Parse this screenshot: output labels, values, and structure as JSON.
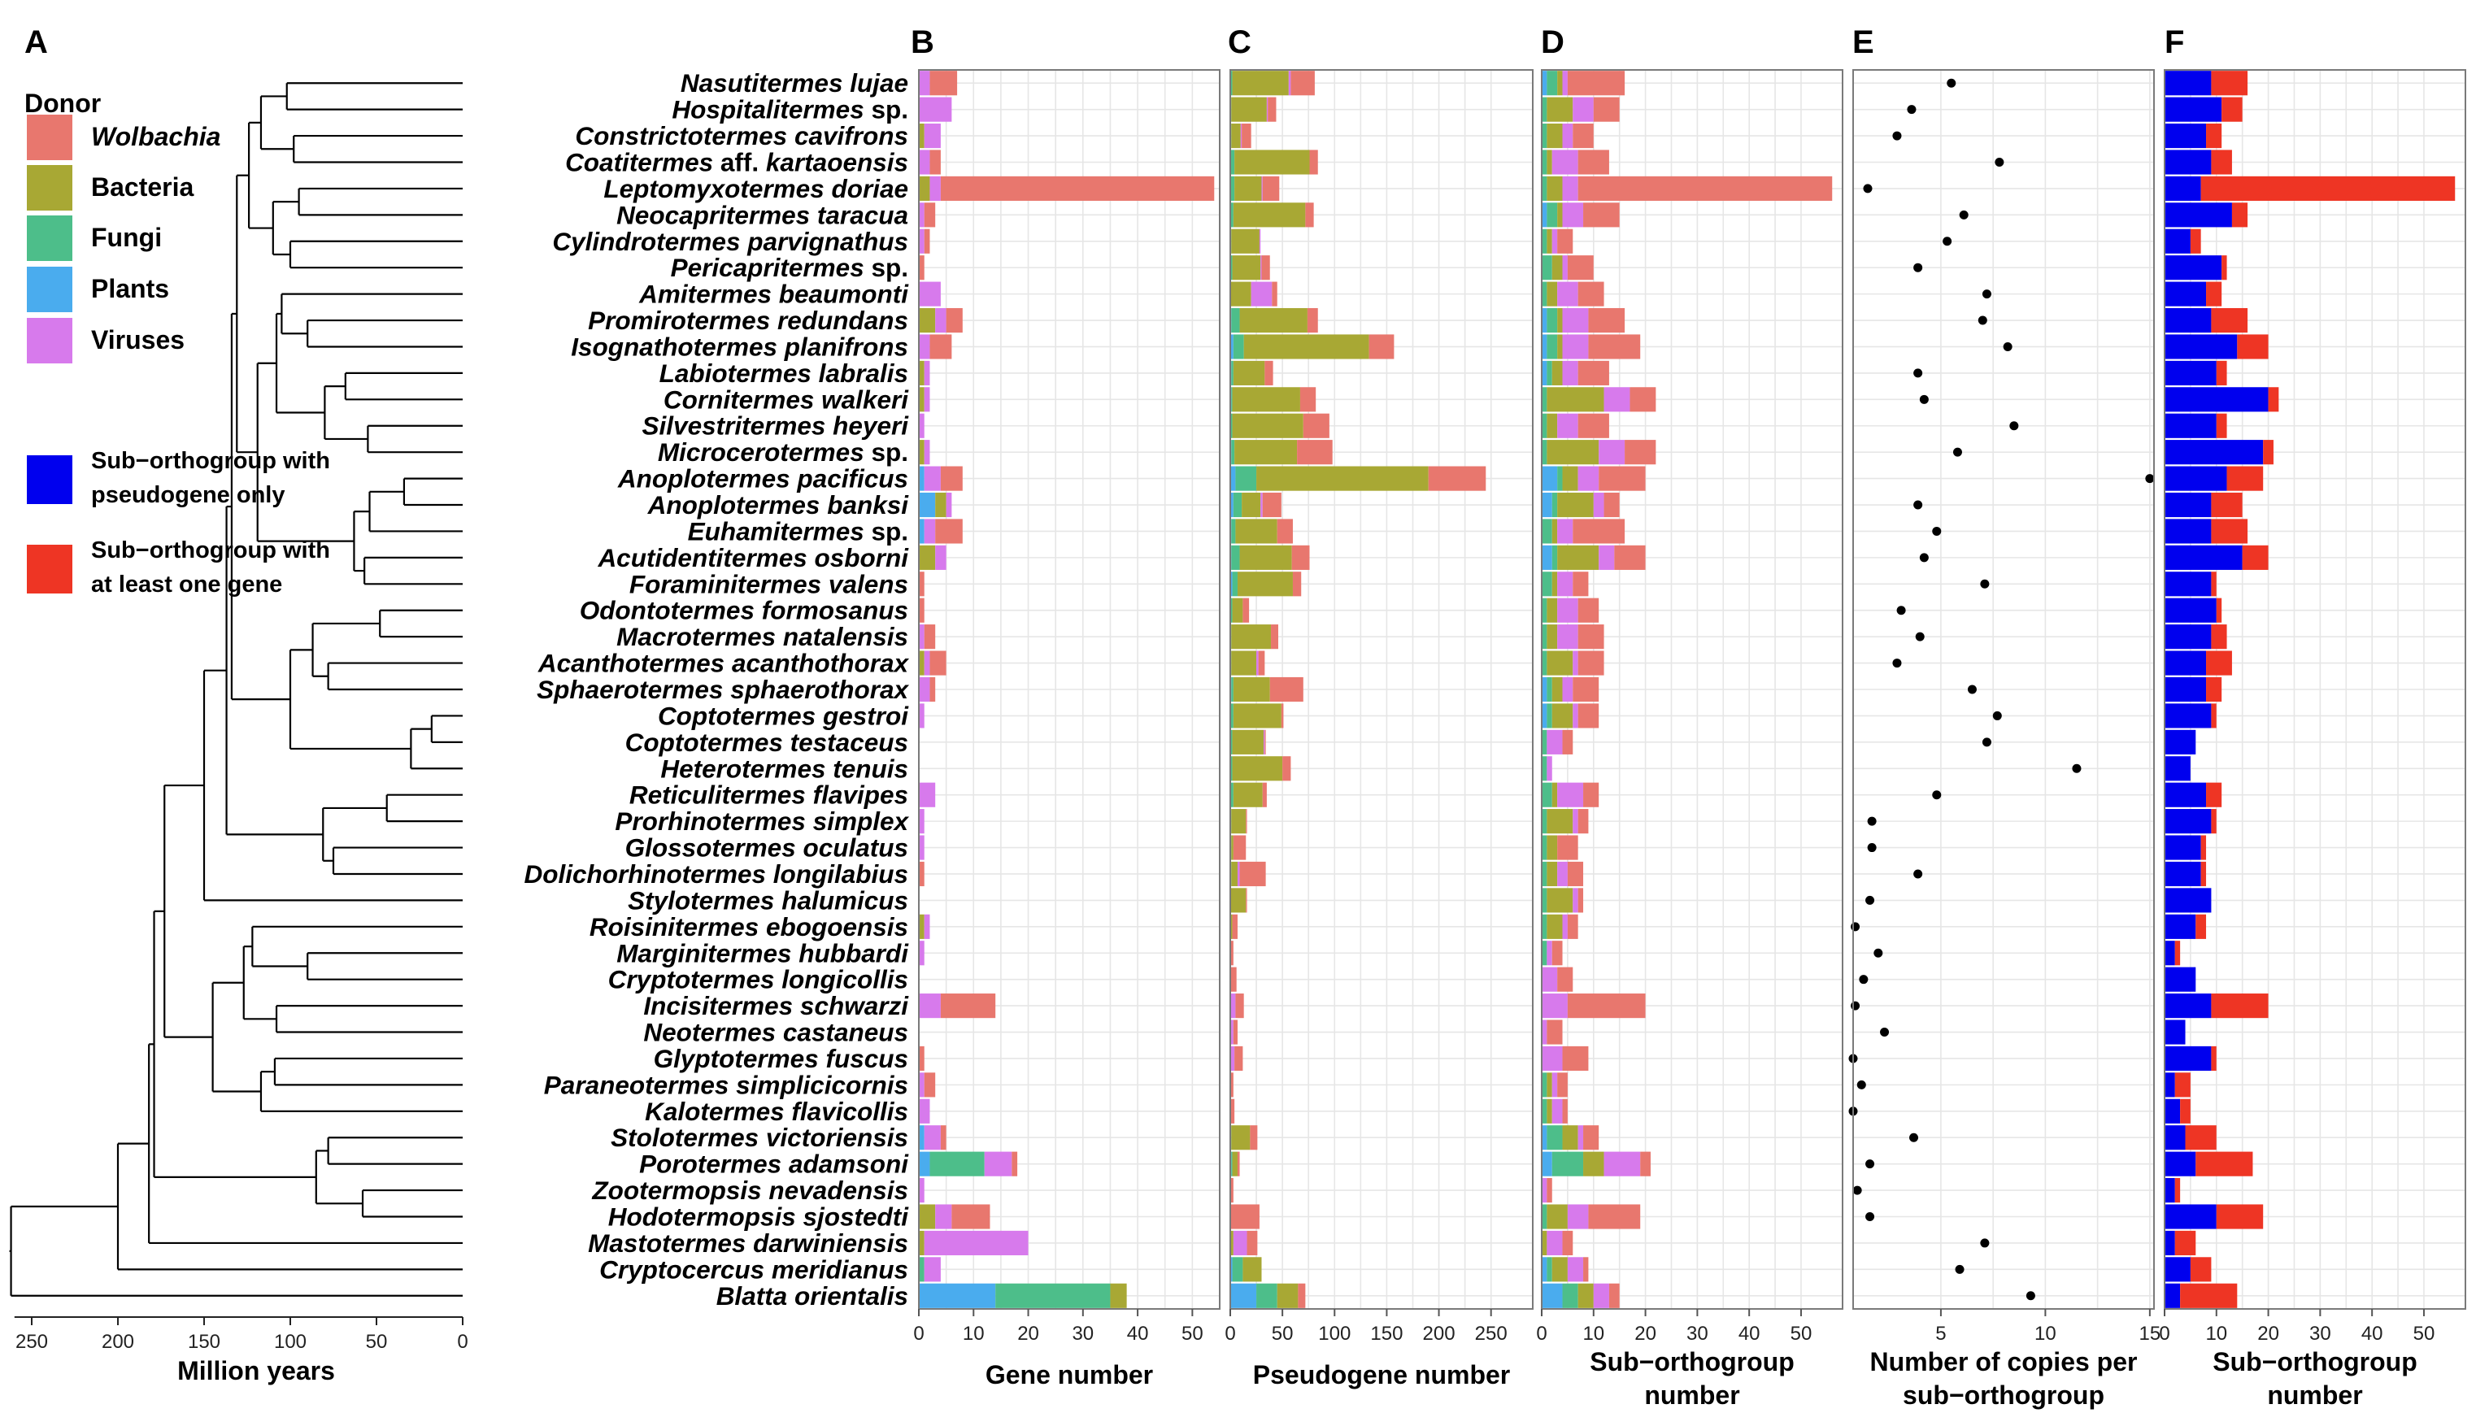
{
  "panel_letters": {
    "A": "A",
    "B": "B",
    "C": "C",
    "D": "D",
    "E": "E",
    "F": "F"
  },
  "legend": {
    "donor_title": "Donor",
    "donors": [
      {
        "key": "wolbachia",
        "label": "Wolbachia",
        "italic": true,
        "color": "#E8776E"
      },
      {
        "key": "bacteria",
        "label": "Bacteria",
        "italic": false,
        "color": "#A8A834"
      },
      {
        "key": "fungi",
        "label": "Fungi",
        "italic": false,
        "color": "#4DBE8A"
      },
      {
        "key": "plants",
        "label": "Plants",
        "italic": false,
        "color": "#4AACEE"
      },
      {
        "key": "viruses",
        "label": "Viruses",
        "italic": false,
        "color": "#D77AEC"
      }
    ],
    "subog": [
      {
        "key": "pseudo",
        "line1": "Sub−orthogroup with",
        "line2": "pseudogene only",
        "color": "#0000EE"
      },
      {
        "key": "gene",
        "line1": "Sub−orthogroup with",
        "line2": "at least one gene",
        "color": "#EE3524"
      }
    ]
  },
  "tree": {
    "axis_title": "Million years",
    "ticks": [
      "250",
      "200",
      "150",
      "100",
      "50",
      "0"
    ]
  },
  "chart_data": {
    "type": "bar",
    "orientation": "horizontal",
    "categories": [
      "Nasutitermes lujae",
      "Hospitalitermes sp.",
      "Constrictotermes cavifrons",
      "Coatitermes aff. kartaoensis",
      "Leptomyxotermes doriae",
      "Neocapritermes taracua",
      "Cylindrotermes parvignathus",
      "Pericapritermes sp.",
      "Amitermes beaumonti",
      "Promirotermes redundans",
      "Isognathotermes planifrons",
      "Labiotermes labralis",
      "Cornitermes walkeri",
      "Silvestritermes heyeri",
      "Microcerotermes sp.",
      "Anoplotermes pacificus",
      "Anoplotermes banksi",
      "Euhamitermes sp.",
      "Acutidentitermes osborni",
      "Foraminitermes valens",
      "Odontotermes formosanus",
      "Macrotermes natalensis",
      "Acanthotermes acanthothorax",
      "Sphaerotermes sphaerothorax",
      "Coptotermes gestroi",
      "Coptotermes testaceus",
      "Heterotermes tenuis",
      "Reticulitermes flavipes",
      "Prorhinotermes simplex",
      "Glossotermes oculatus",
      "Dolichorhinotermes longilabius",
      "Stylotermes halumicus",
      "Roisinitermes ebogoensis",
      "Marginitermes hubbardi",
      "Cryptotermes longicollis",
      "Incisitermes schwarzi",
      "Neotermes castaneus",
      "Glyptotermes fuscus",
      "Paraneotermes simplicicornis",
      "Kalotermes flavicollis",
      "Stolotermes victoriensis",
      "Porotermes adamsoni",
      "Zootermopsis nevadensis",
      "Hodotermopsis sjostedti",
      "Mastotermes darwiniensis",
      "Cryptocercus meridianus",
      "Blatta orientalis"
    ],
    "stack_order": [
      "plants",
      "fungi",
      "bacteria",
      "viruses",
      "wolbachia"
    ],
    "panels": [
      {
        "id": "B",
        "type": "stacked_bar",
        "xlabel": "Gene number",
        "xlim": [
          0,
          55
        ],
        "ticks": [
          0,
          10,
          20,
          30,
          40,
          50
        ],
        "series": {
          "plants": [
            0,
            0,
            0,
            0,
            0,
            0,
            0,
            0,
            0,
            0,
            0,
            0,
            0,
            0,
            0,
            1,
            3,
            1,
            0,
            0,
            0,
            0,
            0,
            0,
            0,
            0,
            0,
            0,
            0,
            0,
            0,
            0,
            0,
            0,
            0,
            0,
            0,
            0,
            0,
            0,
            1,
            2,
            0,
            0,
            0,
            0,
            14
          ],
          "fungi": [
            0,
            0,
            0,
            0,
            0,
            0,
            0,
            0,
            0,
            0,
            0,
            0,
            0,
            0,
            0,
            0,
            0,
            0,
            0,
            0,
            0,
            0,
            0,
            0,
            0,
            0,
            0,
            0,
            0,
            0,
            0,
            0,
            0,
            0,
            0,
            0,
            0,
            0,
            0,
            0,
            0,
            10,
            0,
            0,
            0,
            1,
            21
          ],
          "bacteria": [
            0,
            0,
            1,
            0,
            2,
            0,
            0,
            0,
            0,
            3,
            0,
            1,
            1,
            0,
            1,
            0,
            2,
            0,
            3,
            0,
            0,
            0,
            1,
            0,
            0,
            0,
            0,
            0,
            0,
            0,
            0,
            0,
            1,
            0,
            0,
            0,
            0,
            0,
            0,
            0,
            0,
            0,
            0,
            3,
            1,
            0,
            3
          ],
          "viruses": [
            2,
            6,
            3,
            2,
            2,
            1,
            1,
            0,
            4,
            2,
            2,
            1,
            1,
            1,
            1,
            3,
            1,
            2,
            2,
            0,
            0,
            1,
            1,
            2,
            1,
            0,
            0,
            3,
            1,
            1,
            0,
            0,
            1,
            1,
            0,
            4,
            0,
            0,
            1,
            2,
            3,
            5,
            1,
            3,
            19,
            3,
            0
          ],
          "wolbachia": [
            5,
            0,
            0,
            2,
            50,
            2,
            1,
            1,
            0,
            3,
            4,
            0,
            0,
            0,
            0,
            4,
            0,
            5,
            0,
            1,
            1,
            2,
            3,
            1,
            0,
            0,
            0,
            0,
            0,
            0,
            1,
            0,
            0,
            0,
            0,
            10,
            0,
            1,
            2,
            0,
            1,
            1,
            0,
            7,
            0,
            0,
            0
          ]
        }
      },
      {
        "id": "C",
        "type": "stacked_bar",
        "xlabel": "Pseudogene number",
        "xlim": [
          0,
          290
        ],
        "ticks": [
          0,
          50,
          100,
          150,
          200,
          250
        ],
        "series": {
          "plants": [
            0,
            0,
            0,
            0,
            0,
            0,
            0,
            0,
            0,
            1,
            3,
            1,
            1,
            0,
            1,
            5,
            3,
            1,
            1,
            2,
            0,
            0,
            0,
            1,
            0,
            0,
            0,
            0,
            0,
            0,
            0,
            0,
            0,
            0,
            0,
            0,
            0,
            0,
            0,
            0,
            0,
            1,
            0,
            0,
            0,
            2,
            25
          ],
          "fungi": [
            2,
            1,
            1,
            4,
            4,
            3,
            1,
            2,
            0,
            8,
            10,
            2,
            1,
            2,
            3,
            20,
            8,
            4,
            8,
            5,
            2,
            1,
            1,
            2,
            3,
            2,
            2,
            3,
            1,
            1,
            1,
            0,
            0,
            0,
            0,
            0,
            0,
            0,
            0,
            0,
            1,
            1,
            0,
            0,
            0,
            10,
            20
          ],
          "bacteria": [
            54,
            34,
            9,
            72,
            26,
            69,
            27,
            27,
            20,
            65,
            120,
            30,
            65,
            68,
            60,
            165,
            18,
            40,
            50,
            53,
            10,
            38,
            24,
            35,
            46,
            30,
            48,
            28,
            14,
            2,
            6,
            15,
            2,
            0,
            0,
            0,
            0,
            0,
            0,
            0,
            18,
            5,
            0,
            0,
            3,
            18,
            20
          ],
          "viruses": [
            2,
            1,
            1,
            0,
            1,
            0,
            1,
            1,
            20,
            0,
            0,
            0,
            0,
            0,
            0,
            0,
            2,
            0,
            0,
            0,
            0,
            0,
            2,
            0,
            0,
            1,
            0,
            0,
            0,
            0,
            2,
            0,
            0,
            0,
            0,
            5,
            3,
            4,
            0,
            0,
            0,
            0,
            0,
            0,
            13,
            0,
            0
          ],
          "wolbachia": [
            23,
            8,
            9,
            8,
            16,
            8,
            0,
            8,
            5,
            10,
            24,
            8,
            15,
            25,
            34,
            55,
            18,
            15,
            17,
            8,
            6,
            7,
            6,
            32,
            2,
            1,
            8,
            4,
            1,
            12,
            25,
            1,
            5,
            3,
            6,
            8,
            4,
            8,
            3,
            4,
            7,
            2,
            3,
            28,
            10,
            0,
            7
          ]
        }
      },
      {
        "id": "D",
        "type": "stacked_bar",
        "xlabel": "Sub−orthogroup number",
        "xlim": [
          0,
          58
        ],
        "ticks": [
          0,
          10,
          20,
          30,
          40,
          50
        ],
        "series": {
          "plants": [
            1,
            0,
            0,
            0,
            0,
            1,
            0,
            0,
            0,
            1,
            1,
            1,
            0,
            0,
            0,
            3,
            2,
            0,
            2,
            0,
            0,
            0,
            0,
            1,
            1,
            0,
            0,
            0,
            0,
            0,
            0,
            0,
            0,
            0,
            0,
            0,
            0,
            0,
            0,
            0,
            1,
            2,
            0,
            0,
            0,
            1,
            4
          ],
          "fungi": [
            2,
            1,
            1,
            1,
            1,
            2,
            1,
            2,
            1,
            2,
            2,
            1,
            1,
            1,
            1,
            1,
            1,
            2,
            1,
            2,
            1,
            1,
            1,
            1,
            1,
            1,
            1,
            2,
            1,
            1,
            1,
            1,
            1,
            1,
            0,
            0,
            0,
            0,
            1,
            1,
            3,
            6,
            0,
            1,
            0,
            1,
            3
          ],
          "bacteria": [
            1,
            5,
            3,
            1,
            3,
            1,
            1,
            2,
            2,
            1,
            1,
            2,
            11,
            2,
            10,
            3,
            7,
            1,
            8,
            1,
            2,
            2,
            5,
            2,
            4,
            0,
            0,
            1,
            5,
            2,
            2,
            5,
            3,
            0,
            0,
            0,
            0,
            0,
            1,
            1,
            3,
            4,
            0,
            4,
            1,
            3,
            3
          ],
          "viruses": [
            1,
            4,
            2,
            5,
            3,
            4,
            1,
            1,
            4,
            5,
            5,
            3,
            5,
            4,
            5,
            4,
            2,
            3,
            3,
            3,
            4,
            4,
            1,
            2,
            1,
            3,
            1,
            5,
            1,
            0,
            2,
            1,
            1,
            1,
            3,
            5,
            1,
            4,
            1,
            2,
            1,
            7,
            1,
            4,
            3,
            3,
            3
          ],
          "wolbachia": [
            11,
            5,
            4,
            6,
            49,
            7,
            3,
            5,
            5,
            7,
            10,
            6,
            5,
            6,
            6,
            9,
            3,
            10,
            6,
            3,
            4,
            5,
            5,
            5,
            4,
            2,
            0,
            3,
            2,
            4,
            3,
            1,
            2,
            2,
            3,
            15,
            3,
            5,
            2,
            1,
            3,
            2,
            1,
            10,
            2,
            1,
            2
          ]
        }
      },
      {
        "id": "E",
        "type": "dot",
        "xlabel": "Number of copies per sub−orthogroup",
        "xlim": [
          0.8,
          15.2
        ],
        "ticks": [
          5,
          10,
          15
        ],
        "values": [
          5.5,
          3.6,
          2.9,
          7.8,
          1.5,
          6.1,
          5.3,
          3.9,
          7.2,
          7.0,
          8.2,
          3.9,
          4.2,
          8.5,
          5.8,
          15,
          3.9,
          4.8,
          4.2,
          7.1,
          3.1,
          4.0,
          2.9,
          6.5,
          7.7,
          7.2,
          11.5,
          4.8,
          1.7,
          1.7,
          3.9,
          1.6,
          0.9,
          2.0,
          1.3,
          0.9,
          2.3,
          0.8,
          1.2,
          0.8,
          3.7,
          1.6,
          1.0,
          1.6,
          7.1,
          5.9,
          9.3
        ]
      },
      {
        "id": "F",
        "type": "stacked_bar",
        "xlabel": "Sub−orthogroup number",
        "xlim": [
          0,
          58
        ],
        "ticks": [
          0,
          10,
          20,
          30,
          40,
          50
        ],
        "series": {
          "pseudo": [
            9,
            11,
            8,
            9,
            7,
            13,
            5,
            11,
            8,
            9,
            14,
            10,
            20,
            10,
            19,
            12,
            9,
            9,
            15,
            9,
            10,
            9,
            8,
            8,
            9,
            6,
            5,
            8,
            9,
            7,
            7,
            9,
            6,
            2,
            6,
            9,
            4,
            9,
            2,
            3,
            4,
            6,
            2,
            10,
            2,
            5,
            3
          ],
          "gene": [
            7,
            4,
            3,
            4,
            49,
            3,
            2,
            1,
            3,
            7,
            6,
            2,
            2,
            2,
            2,
            7,
            6,
            7,
            5,
            1,
            1,
            3,
            5,
            3,
            1,
            0,
            0,
            3,
            1,
            1,
            1,
            0,
            2,
            1,
            0,
            11,
            0,
            1,
            3,
            2,
            6,
            11,
            1,
            9,
            4,
            4,
            11
          ]
        }
      }
    ]
  }
}
